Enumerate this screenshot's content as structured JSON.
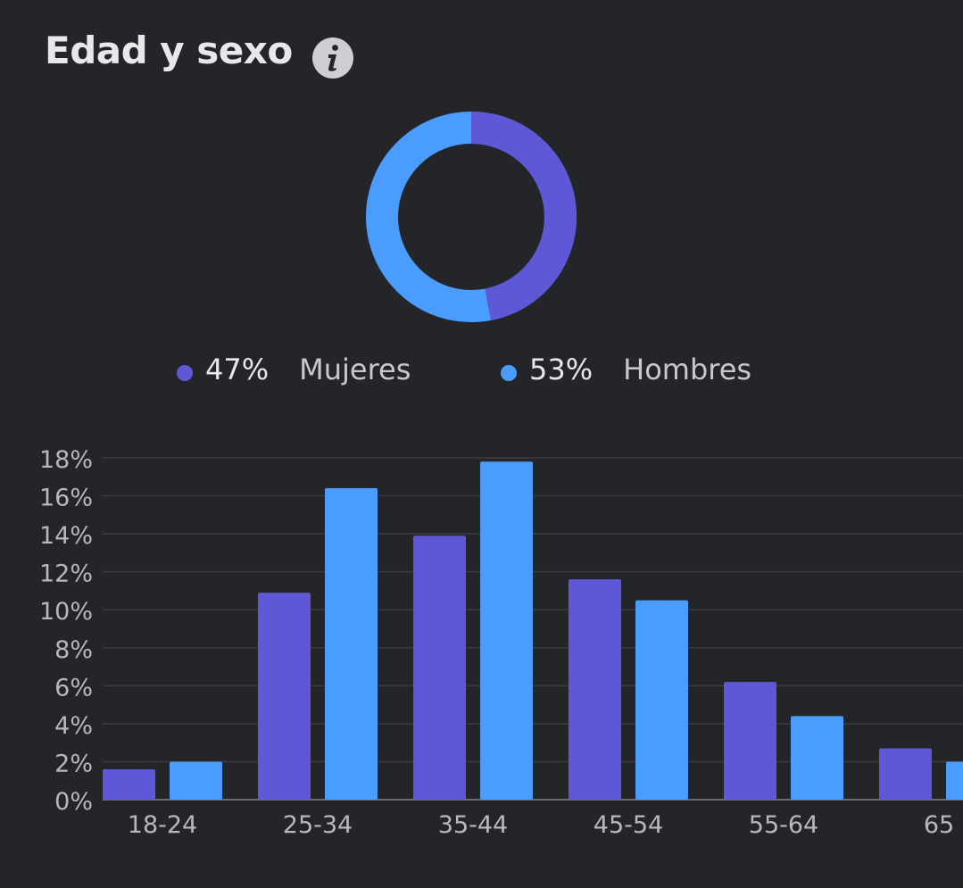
{
  "header": {
    "title": "Edad y sexo",
    "info_icon": "info-icon"
  },
  "colors": {
    "women": "#5e58d6",
    "men": "#4b9cff",
    "background": "#242528",
    "grid": "#3b3c40",
    "axis_text": "#b8b8bc"
  },
  "donut": {
    "women_pct": 47,
    "men_pct": 53
  },
  "legend": {
    "women_value": "47%",
    "women_label": "Mujeres",
    "men_value": "53%",
    "men_label": "Hombres"
  },
  "chart_data": {
    "type": "bar",
    "categories": [
      "18-24",
      "25-34",
      "35-44",
      "45-54",
      "55-64",
      "65"
    ],
    "series": [
      {
        "name": "Mujeres",
        "values": [
          1.6,
          10.9,
          13.9,
          11.6,
          6.2,
          2.7
        ]
      },
      {
        "name": "Hombres",
        "values": [
          2.0,
          16.4,
          17.8,
          10.5,
          4.4,
          2.0
        ]
      }
    ],
    "ylim": [
      0,
      18
    ],
    "yticks": [
      "0%",
      "2%",
      "4%",
      "6%",
      "8%",
      "10%",
      "12%",
      "14%",
      "16%",
      "18%"
    ],
    "grid": true
  }
}
